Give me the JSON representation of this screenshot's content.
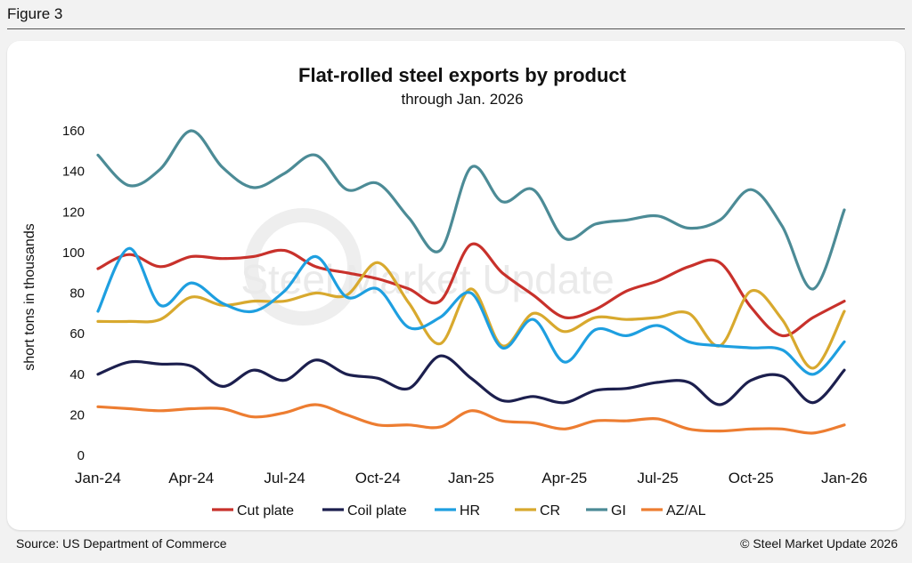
{
  "figure_label": "Figure 3",
  "source": "Source: US Department of Commerce",
  "copyright": "© Steel Market Update 2026",
  "watermark": "Steel Market Update",
  "chart_data": {
    "type": "line",
    "title": "Flat-rolled steel exports by product",
    "subtitle": "through Jan. 2026",
    "ylabel": "short tons in thousands",
    "xlabel": "",
    "ylim": [
      0,
      160
    ],
    "yticks": [
      0,
      20,
      40,
      60,
      80,
      100,
      120,
      140,
      160
    ],
    "x_tick_labels": [
      "Jan-24",
      "Apr-24",
      "Jul-24",
      "Oct-24",
      "Jan-25",
      "Apr-25",
      "Jul-25",
      "Oct-25",
      "Jan-26"
    ],
    "x": [
      "Jan-24",
      "Feb-24",
      "Mar-24",
      "Apr-24",
      "May-24",
      "Jun-24",
      "Jul-24",
      "Aug-24",
      "Sep-24",
      "Oct-24",
      "Nov-24",
      "Dec-24",
      "Jan-25",
      "Feb-25",
      "Mar-25",
      "Apr-25",
      "May-25",
      "Jun-25",
      "Jul-25",
      "Aug-25",
      "Sep-25",
      "Oct-25",
      "Nov-25",
      "Dec-25",
      "Jan-26"
    ],
    "grid": false,
    "legend": "bottom",
    "series": [
      {
        "name": "Cut plate",
        "color": "#c8312b",
        "values": [
          92,
          99,
          93,
          98,
          97,
          98,
          101,
          93,
          90,
          87,
          82,
          76,
          104,
          90,
          79,
          68,
          72,
          81,
          86,
          93,
          95,
          73,
          59,
          68,
          76
        ]
      },
      {
        "name": "Coil plate",
        "color": "#1c1f4e",
        "values": [
          40,
          46,
          45,
          44,
          34,
          42,
          37,
          47,
          40,
          38,
          33,
          49,
          38,
          27,
          29,
          26,
          32,
          33,
          36,
          36,
          25,
          37,
          39,
          26,
          42
        ]
      },
      {
        "name": "HR",
        "color": "#1e9fe0",
        "values": [
          71,
          102,
          74,
          85,
          75,
          71,
          81,
          98,
          78,
          82,
          63,
          68,
          80,
          53,
          67,
          46,
          62,
          59,
          64,
          56,
          54,
          53,
          52,
          40,
          56
        ]
      },
      {
        "name": "CR",
        "color": "#d8a92e",
        "values": [
          66,
          66,
          67,
          78,
          74,
          76,
          76,
          80,
          79,
          95,
          75,
          55,
          82,
          54,
          70,
          61,
          68,
          67,
          68,
          70,
          54,
          81,
          67,
          43,
          71
        ]
      },
      {
        "name": "GI",
        "color": "#4c8b96",
        "values": [
          148,
          133,
          141,
          160,
          142,
          132,
          139,
          148,
          131,
          134,
          117,
          101,
          142,
          125,
          131,
          107,
          114,
          116,
          118,
          112,
          116,
          131,
          113,
          82,
          121
        ]
      },
      {
        "name": "AZ/AL",
        "color": "#ed7d31",
        "values": [
          24,
          23,
          22,
          23,
          23,
          19,
          21,
          25,
          20,
          15,
          15,
          14,
          22,
          17,
          16,
          13,
          17,
          17,
          18,
          13,
          12,
          13,
          13,
          11,
          15
        ]
      }
    ]
  }
}
